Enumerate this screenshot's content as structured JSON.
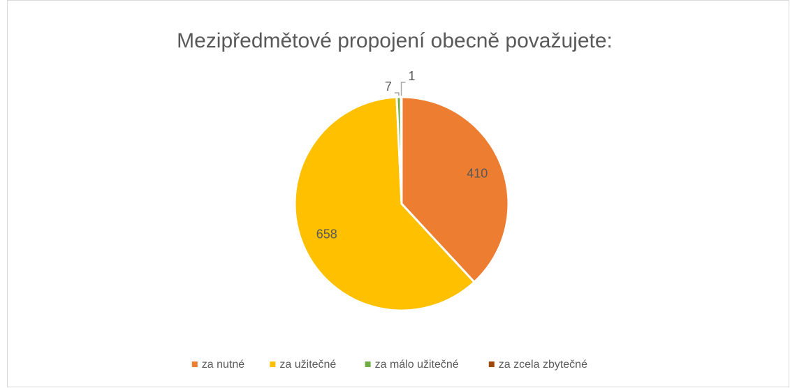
{
  "chart_data": {
    "type": "pie",
    "title": "Mezipředmětové propojení obecně považujete:",
    "categories": [
      "za nutné",
      "za užitečné",
      "za málo užitečné",
      "za zcela zbytečné"
    ],
    "values": [
      410,
      658,
      7,
      1
    ],
    "colors": [
      "#ed7d31",
      "#ffc000",
      "#70ad47",
      "#9e480e"
    ],
    "legend": "bottom"
  }
}
